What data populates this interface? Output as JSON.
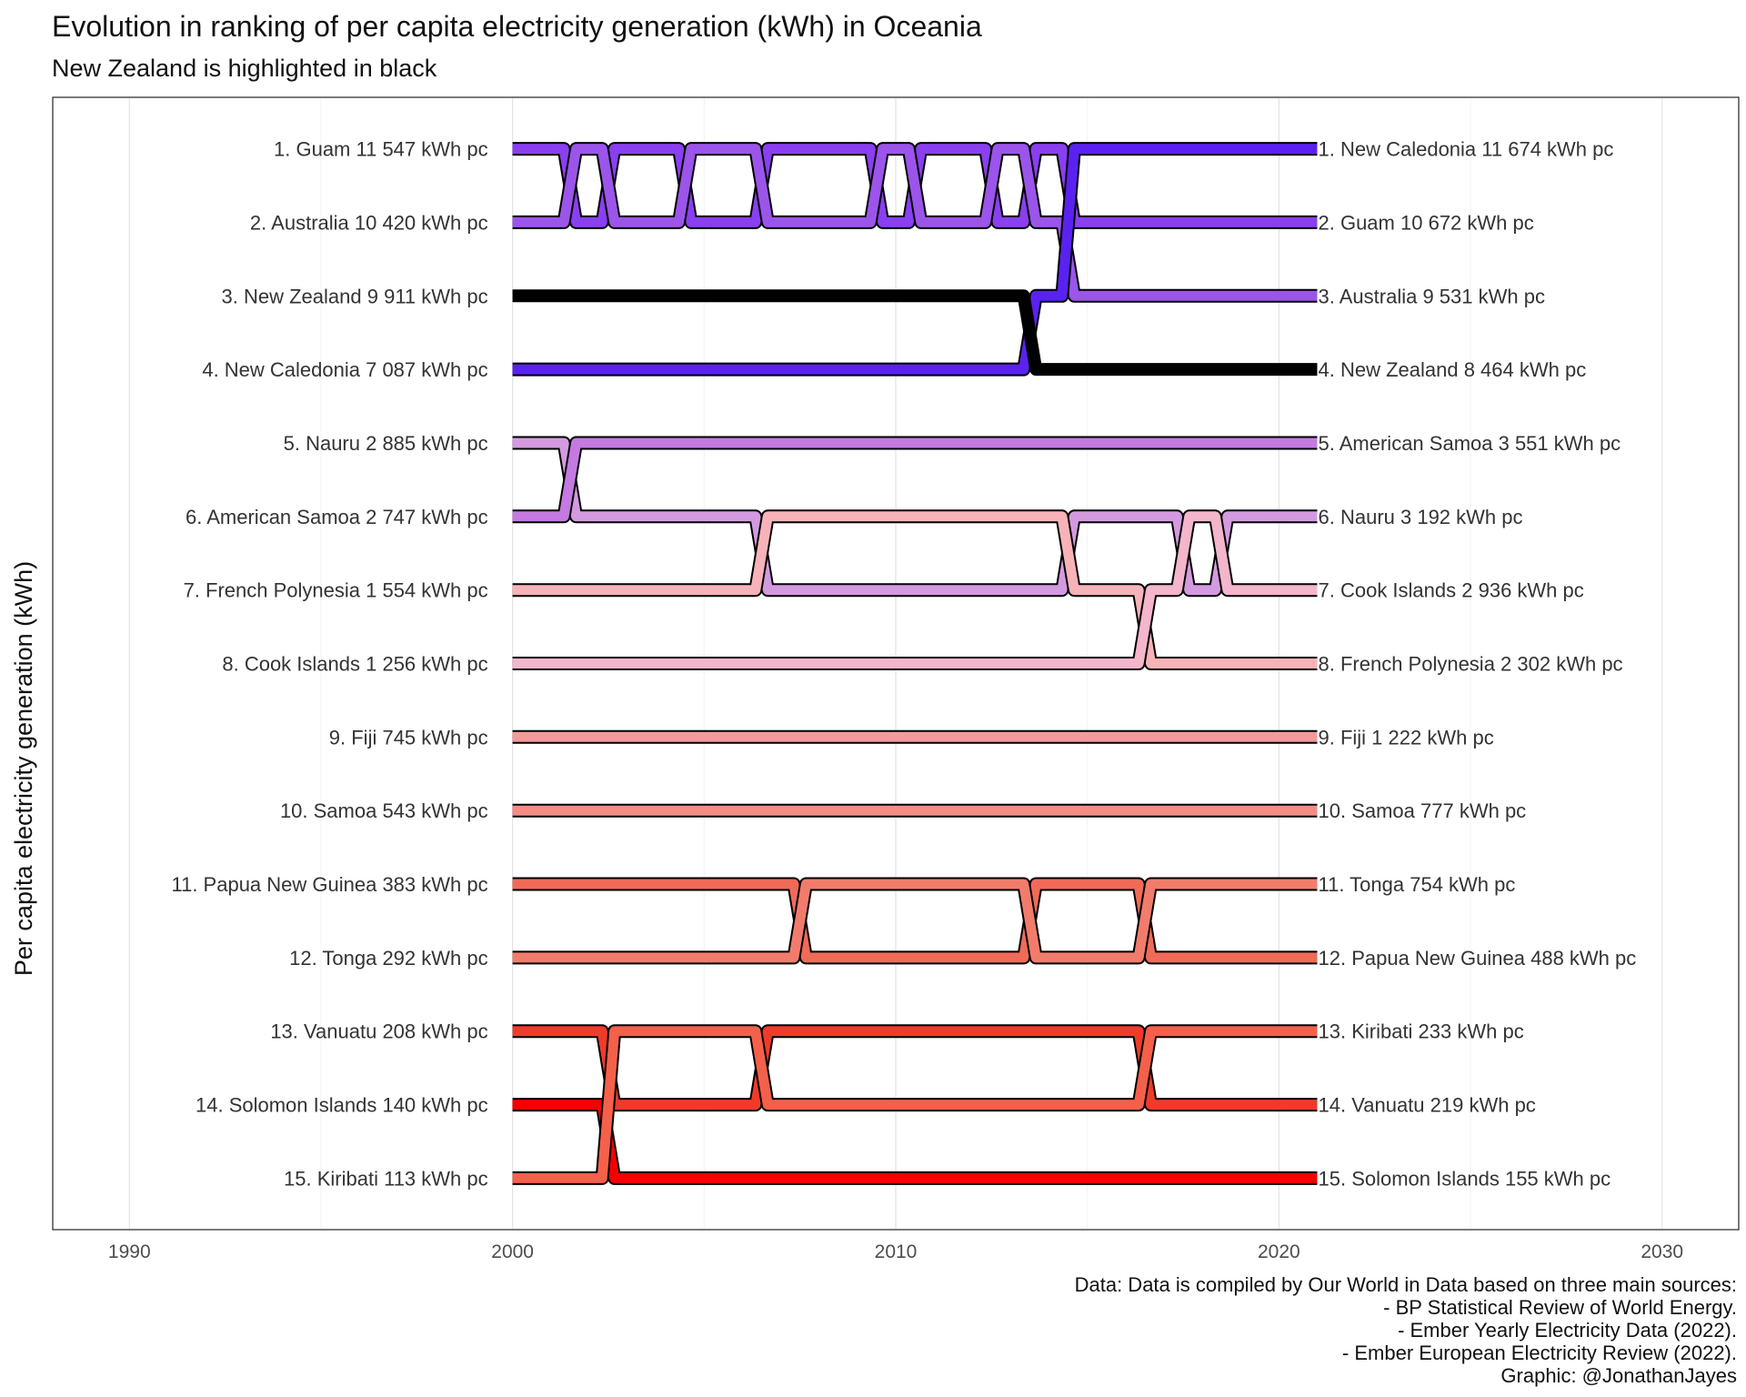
{
  "chart_data": {
    "type": "line",
    "title": "Evolution in ranking of per capita electricity generation (kWh) in Oceania",
    "subtitle": "New Zealand is highlighted in black",
    "ylabel": "Per capita electricity generation (kWh)",
    "xlabel": "",
    "xlim": [
      1988,
      2032
    ],
    "ylim": [
      15.7,
      0.3
    ],
    "x_ticks": [
      1990,
      2000,
      2010,
      2020,
      2030
    ],
    "grid": true,
    "legend": "none",
    "highlight": {
      "name": "New Zealand",
      "color": "#000000"
    },
    "years": [
      2000,
      2001,
      2002,
      2003,
      2004,
      2005,
      2006,
      2007,
      2008,
      2009,
      2010,
      2011,
      2012,
      2013,
      2014,
      2015,
      2016,
      2017,
      2018,
      2019,
      2020,
      2021
    ],
    "start_labels": [
      "1. Guam 11 547 kWh pc",
      "2. Australia 10 420 kWh pc",
      "3. New Zealand 9 911 kWh pc",
      "4. New Caledonia 7 087 kWh pc",
      "5. Nauru 2 885 kWh pc",
      "6. American Samoa 2 747 kWh pc",
      "7. French Polynesia 1 554 kWh pc",
      "8. Cook Islands 1 256 kWh pc",
      "9. Fiji 745 kWh pc",
      "10. Samoa 543 kWh pc",
      "11. Papua New Guinea 383 kWh pc",
      "12. Tonga 292 kWh pc",
      "13. Vanuatu 208 kWh pc",
      "14. Solomon Islands 140 kWh pc",
      "15. Kiribati 113 kWh pc"
    ],
    "end_labels": [
      "1. New Caledonia 11 674 kWh pc",
      "2. Guam 10 672 kWh pc",
      "3. Australia 9 531 kWh pc",
      "4. New Zealand 8 464 kWh pc",
      "5. American Samoa 3 551 kWh pc",
      "6. Nauru 3 192 kWh pc",
      "7. Cook Islands 2 936 kWh pc",
      "8. French Polynesia 2 302 kWh pc",
      "9. Fiji 1 222 kWh pc",
      "10. Samoa 777 kWh pc",
      "11. Tonga 754 kWh pc",
      "12. Papua New Guinea 488 kWh pc",
      "13. Kiribati 233 kWh pc",
      "14. Vanuatu 219 kWh pc",
      "15. Solomon Islands 155 kWh pc"
    ],
    "series": [
      {
        "name": "Guam",
        "color": "#8a3ff0",
        "ranks": [
          1,
          1,
          2,
          1,
          1,
          2,
          2,
          1,
          1,
          1,
          2,
          1,
          1,
          2,
          1,
          2,
          2,
          2,
          2,
          2,
          2,
          2
        ]
      },
      {
        "name": "Australia",
        "color": "#9b55ea",
        "ranks": [
          2,
          2,
          1,
          2,
          2,
          1,
          1,
          2,
          2,
          2,
          1,
          2,
          2,
          1,
          2,
          3,
          3,
          3,
          3,
          3,
          3,
          3
        ]
      },
      {
        "name": "New Zealand",
        "color": "#000000",
        "ranks": [
          3,
          3,
          3,
          3,
          3,
          3,
          3,
          3,
          3,
          3,
          3,
          3,
          3,
          3,
          4,
          4,
          4,
          4,
          4,
          4,
          4,
          4
        ]
      },
      {
        "name": "New Caledonia",
        "color": "#5a22f0",
        "ranks": [
          4,
          4,
          4,
          4,
          4,
          4,
          4,
          4,
          4,
          4,
          4,
          4,
          4,
          4,
          3,
          1,
          1,
          1,
          1,
          1,
          1,
          1
        ]
      },
      {
        "name": "Nauru",
        "color": "#d49ae0",
        "ranks": [
          5,
          5,
          6,
          6,
          6,
          6,
          6,
          7,
          7,
          7,
          7,
          7,
          7,
          7,
          7,
          6,
          6,
          6,
          7,
          6,
          6,
          6
        ]
      },
      {
        "name": "American Samoa",
        "color": "#c47ae0",
        "ranks": [
          6,
          6,
          5,
          5,
          5,
          5,
          5,
          5,
          5,
          5,
          5,
          5,
          5,
          5,
          5,
          5,
          5,
          5,
          5,
          5,
          5,
          5
        ]
      },
      {
        "name": "French Polynesia",
        "color": "#f7b3b8",
        "ranks": [
          7,
          7,
          7,
          7,
          7,
          7,
          7,
          6,
          6,
          6,
          6,
          6,
          6,
          6,
          6,
          7,
          7,
          8,
          8,
          8,
          8,
          8
        ]
      },
      {
        "name": "Cook Islands",
        "color": "#f3b6cc",
        "ranks": [
          8,
          8,
          8,
          8,
          8,
          8,
          8,
          8,
          8,
          8,
          8,
          8,
          8,
          8,
          8,
          8,
          8,
          7,
          6,
          7,
          7,
          7
        ]
      },
      {
        "name": "Fiji",
        "color": "#f49a9a",
        "ranks": [
          9,
          9,
          9,
          9,
          9,
          9,
          9,
          9,
          9,
          9,
          9,
          9,
          9,
          9,
          9,
          9,
          9,
          9,
          9,
          9,
          9,
          9
        ]
      },
      {
        "name": "Samoa",
        "color": "#f48c86",
        "ranks": [
          10,
          10,
          10,
          10,
          10,
          10,
          10,
          10,
          10,
          10,
          10,
          10,
          10,
          10,
          10,
          10,
          10,
          10,
          10,
          10,
          10,
          10
        ]
      },
      {
        "name": "Papua New Guinea",
        "color": "#f06a58",
        "ranks": [
          11,
          11,
          11,
          11,
          11,
          11,
          11,
          11,
          12,
          12,
          12,
          12,
          12,
          12,
          11,
          11,
          11,
          12,
          12,
          12,
          12,
          12
        ]
      },
      {
        "name": "Tonga",
        "color": "#f27c6c",
        "ranks": [
          12,
          12,
          12,
          12,
          12,
          12,
          12,
          12,
          11,
          11,
          11,
          11,
          11,
          11,
          12,
          12,
          12,
          11,
          11,
          11,
          11,
          11
        ]
      },
      {
        "name": "Vanuatu",
        "color": "#f03b2a",
        "ranks": [
          13,
          13,
          13,
          14,
          14,
          14,
          14,
          13,
          13,
          13,
          13,
          13,
          13,
          13,
          13,
          13,
          13,
          14,
          14,
          14,
          14,
          14
        ]
      },
      {
        "name": "Solomon Islands",
        "color": "#f40000",
        "ranks": [
          14,
          14,
          14,
          15,
          15,
          15,
          15,
          15,
          15,
          15,
          15,
          15,
          15,
          15,
          15,
          15,
          15,
          15,
          15,
          15,
          15,
          15
        ]
      },
      {
        "name": "Kiribati",
        "color": "#f5604b",
        "ranks": [
          15,
          15,
          15,
          13,
          13,
          13,
          13,
          14,
          14,
          14,
          14,
          14,
          14,
          14,
          14,
          14,
          14,
          13,
          13,
          13,
          13,
          13
        ]
      }
    ]
  },
  "caption": [
    "Data: Data is compiled by Our World in Data based on three main sources:",
    "- BP Statistical Review of World Energy.",
    "- Ember Yearly Electricity Data (2022).",
    "- Ember European Electricity Review (2022).",
    "Graphic: @JonathanJayes"
  ]
}
